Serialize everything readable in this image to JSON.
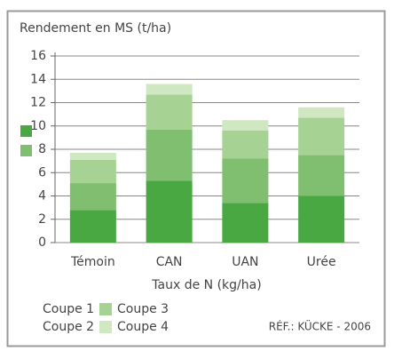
{
  "chart_data": {
    "type": "stacked-bar",
    "title": "Rendement en MS (t/ha)",
    "x_label": "Taux de N (kg/ha)",
    "note": "RÉF.: KÜCKE - 2006",
    "categories": [
      "Témoin",
      "CAN",
      "UAN",
      "Urée"
    ],
    "series": [
      {
        "name": "Coupe 1",
        "color": "#4aa843",
        "values": [
          2.8,
          5.3,
          3.4,
          4.0
        ]
      },
      {
        "name": "Coupe 2",
        "color": "#7fbf6f",
        "values": [
          2.3,
          4.4,
          3.8,
          3.5
        ]
      },
      {
        "name": "Coupe 3",
        "color": "#a6d294",
        "values": [
          2.0,
          3.0,
          2.4,
          3.2
        ]
      },
      {
        "name": "Coupe 4",
        "color": "#d0e8c2",
        "values": [
          0.6,
          0.9,
          0.9,
          0.9
        ]
      }
    ],
    "ylim": [
      0,
      16
    ],
    "yticks": [
      0,
      2,
      4,
      6,
      8,
      10,
      12,
      14,
      16
    ],
    "grid": true
  }
}
